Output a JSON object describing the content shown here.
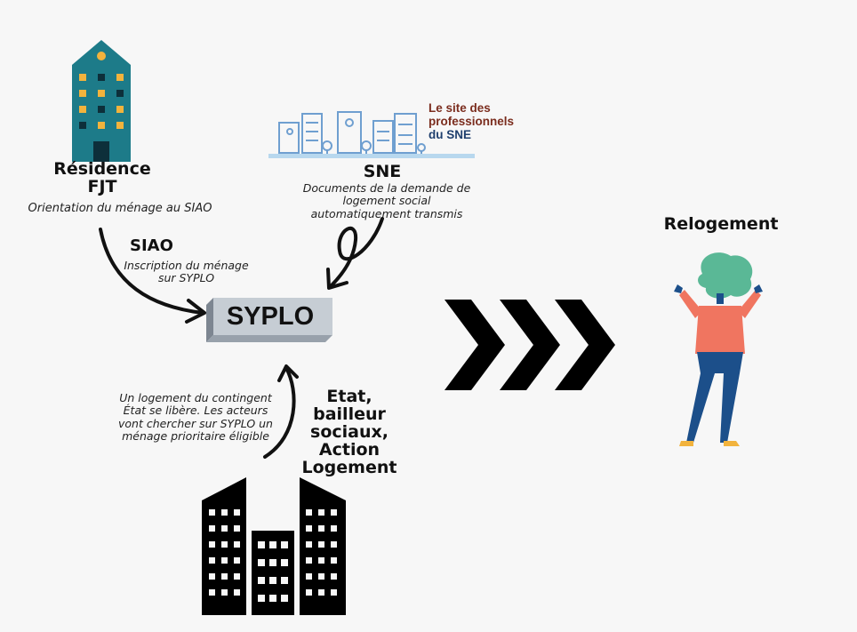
{
  "residence": {
    "title_line1": "Résidence",
    "title_line2": "FJT",
    "subtitle": "Orientation du ménage au SIAO"
  },
  "sne": {
    "logo_line1": "Le site des",
    "logo_line2": "professionnels",
    "logo_line3": "du SNE",
    "title": "SNE",
    "subtitle": "Documents de la demande de logement social automatiquement transmis"
  },
  "siao": {
    "title": "SIAO",
    "subtitle": "Inscription du  ménage sur SYPLO"
  },
  "syplo": {
    "label": "SYPLO"
  },
  "actors": {
    "title_line1": "Etat,",
    "title_line2": "bailleur",
    "title_line3": "sociaux,",
    "title_line4": "Action",
    "title_line5": "Logement",
    "note": "Un logement du contingent État se libère. Les acteurs vont chercher sur SYPLO un ménage prioritaire éligible"
  },
  "outcome": {
    "title": "Relogement"
  },
  "icons": {
    "residence": "teal-apartment-building-icon",
    "sne_logo": "city-skyline-logo-icon",
    "actors": "black-buildings-icon",
    "person": "happy-person-illustration-icon",
    "chevrons": "triple-chevron-arrow-icon"
  },
  "colors": {
    "building_teal": "#1d7b89",
    "window_yellow": "#f2b33d",
    "person_shirt": "#f07560",
    "person_hair": "#5ab896",
    "person_pants": "#1c4f8a",
    "syplo_box": "#c6cdd4",
    "sne_skyline": "#6f9fd0"
  }
}
